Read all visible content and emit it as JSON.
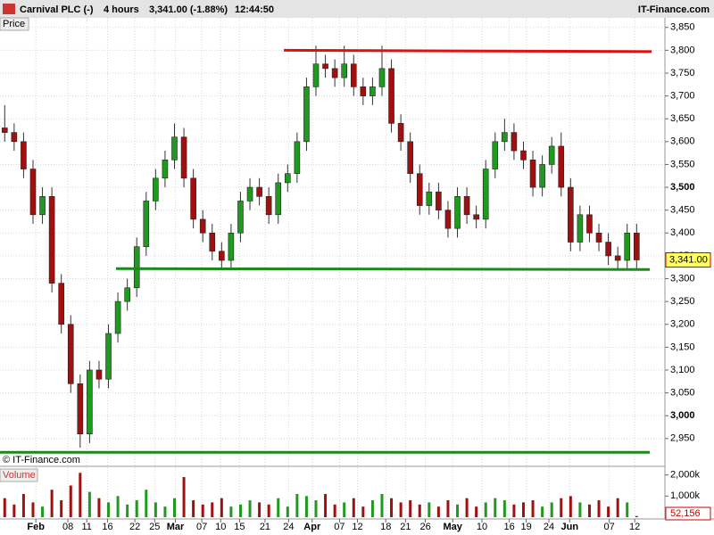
{
  "chart_data": {
    "type": "candlestick",
    "title": "Carnival PLC (-)",
    "interval": "4 hours",
    "quote": "3,341.00 (-1.88%)",
    "time": "12:44:50",
    "brand": "IT-Finance.com",
    "price_label": "Price",
    "copyright": "© IT-Finance.com",
    "volume_label": "Volume",
    "up_color": "#1e9a1e",
    "down_color": "#a01010",
    "grid": true,
    "xlim": [
      -0.5,
      70
    ],
    "ylim": [
      2895,
      3871
    ],
    "yticks": [
      {
        "value": 2950,
        "label": "2,950"
      },
      {
        "value": 3000,
        "label": "3,000"
      },
      {
        "value": 3050,
        "label": "3,050"
      },
      {
        "value": 3100,
        "label": "3,100"
      },
      {
        "value": 3150,
        "label": "3,150"
      },
      {
        "value": 3200,
        "label": "3,200"
      },
      {
        "value": 3250,
        "label": "3,250"
      },
      {
        "value": 3300,
        "label": "3,300"
      },
      {
        "value": 3350,
        "label": "3,350"
      },
      {
        "value": 3400,
        "label": "3,400"
      },
      {
        "value": 3450,
        "label": "3,450"
      },
      {
        "value": 3500,
        "label": "3,500"
      },
      {
        "value": 3550,
        "label": "3,550"
      },
      {
        "value": 3600,
        "label": "3,600"
      },
      {
        "value": 3650,
        "label": "3,650"
      },
      {
        "value": 3700,
        "label": "3,700"
      },
      {
        "value": 3750,
        "label": "3,750"
      },
      {
        "value": 3800,
        "label": "3,800"
      },
      {
        "value": 3850,
        "label": "3,850"
      }
    ],
    "xticks": [
      {
        "value": 3.3,
        "label": "Feb"
      },
      {
        "value": 6.7,
        "label": "08"
      },
      {
        "value": 8.7,
        "label": "11"
      },
      {
        "value": 10.9,
        "label": "16"
      },
      {
        "value": 13.8,
        "label": "22"
      },
      {
        "value": 15.9,
        "label": "25"
      },
      {
        "value": 18.1,
        "label": "Mar"
      },
      {
        "value": 20.9,
        "label": "07"
      },
      {
        "value": 22.9,
        "label": "10"
      },
      {
        "value": 24.9,
        "label": "15"
      },
      {
        "value": 27.6,
        "label": "21"
      },
      {
        "value": 30.1,
        "label": "24"
      },
      {
        "value": 32.6,
        "label": "Apr"
      },
      {
        "value": 35.5,
        "label": "07"
      },
      {
        "value": 37.4,
        "label": "12"
      },
      {
        "value": 40.4,
        "label": "18"
      },
      {
        "value": 42.5,
        "label": "21"
      },
      {
        "value": 44.6,
        "label": "26"
      },
      {
        "value": 47.5,
        "label": "May"
      },
      {
        "value": 50.6,
        "label": "10"
      },
      {
        "value": 53.5,
        "label": "16"
      },
      {
        "value": 55.3,
        "label": "19"
      },
      {
        "value": 57.7,
        "label": "24"
      },
      {
        "value": 59.9,
        "label": "Jun"
      },
      {
        "value": 64.1,
        "label": "07"
      },
      {
        "value": 66.8,
        "label": "12"
      }
    ],
    "open": [
      3630,
      3620,
      3600,
      3540,
      3440,
      3480,
      3290,
      3200,
      3070,
      2960,
      3100,
      3080,
      3180,
      3250,
      3280,
      3370,
      3470,
      3520,
      3560,
      3610,
      3520,
      3430,
      3400,
      3360,
      3340,
      3400,
      3470,
      3500,
      3480,
      3440,
      3510,
      3530,
      3600,
      3720,
      3770,
      3760,
      3740,
      3770,
      3720,
      3700,
      3720,
      3760,
      3640,
      3600,
      3530,
      3460,
      3490,
      3450,
      3410,
      3480,
      3440,
      3430,
      3540,
      3600,
      3620,
      3580,
      3560,
      3500,
      3550,
      3590,
      3500,
      3380,
      3440,
      3400,
      3380,
      3350,
      3340,
      3400
    ],
    "high": [
      3680,
      3640,
      3620,
      3560,
      3500,
      3500,
      3310,
      3220,
      3090,
      3120,
      3120,
      3200,
      3270,
      3300,
      3390,
      3490,
      3540,
      3580,
      3640,
      3630,
      3540,
      3450,
      3420,
      3380,
      3420,
      3490,
      3520,
      3520,
      3500,
      3530,
      3550,
      3620,
      3740,
      3810,
      3790,
      3780,
      3810,
      3790,
      3740,
      3740,
      3810,
      3780,
      3660,
      3620,
      3550,
      3510,
      3510,
      3470,
      3500,
      3500,
      3460,
      3560,
      3620,
      3650,
      3640,
      3600,
      3580,
      3570,
      3610,
      3620,
      3520,
      3460,
      3460,
      3420,
      3400,
      3370,
      3420,
      3420
    ],
    "low": [
      3600,
      3580,
      3520,
      3420,
      3420,
      3270,
      3180,
      3050,
      2930,
      2940,
      3060,
      3060,
      3160,
      3230,
      3260,
      3350,
      3450,
      3500,
      3540,
      3500,
      3410,
      3380,
      3340,
      3320,
      3320,
      3380,
      3450,
      3460,
      3420,
      3420,
      3490,
      3510,
      3580,
      3700,
      3740,
      3720,
      3720,
      3700,
      3680,
      3680,
      3700,
      3620,
      3580,
      3510,
      3440,
      3440,
      3430,
      3390,
      3390,
      3420,
      3410,
      3410,
      3520,
      3580,
      3560,
      3540,
      3480,
      3480,
      3530,
      3480,
      3360,
      3360,
      3380,
      3360,
      3330,
      3320,
      3320,
      3321
    ],
    "close": [
      3620,
      3600,
      3540,
      3440,
      3480,
      3290,
      3200,
      3070,
      2960,
      3100,
      3080,
      3180,
      3250,
      3280,
      3370,
      3470,
      3520,
      3560,
      3610,
      3520,
      3430,
      3400,
      3360,
      3340,
      3400,
      3470,
      3500,
      3480,
      3440,
      3510,
      3530,
      3600,
      3720,
      3770,
      3760,
      3740,
      3770,
      3720,
      3700,
      3720,
      3760,
      3640,
      3600,
      3530,
      3460,
      3490,
      3450,
      3410,
      3480,
      3440,
      3430,
      3540,
      3600,
      3620,
      3580,
      3560,
      3500,
      3550,
      3590,
      3500,
      3380,
      3440,
      3400,
      3380,
      3350,
      3340,
      3400,
      3341
    ],
    "last_price": {
      "value": 3341,
      "label": "3,341.00"
    },
    "trendlines": [
      {
        "color": "#e01010",
        "x": [
          29.6,
          68.6
        ],
        "y": [
          3800,
          3797
        ]
      },
      {
        "color": "#1a8a1a",
        "x": [
          11.8,
          68.4
        ],
        "y": [
          3322,
          3320
        ]
      },
      {
        "color": "#1a8a1a",
        "x": [
          -0.5,
          68.4
        ],
        "y": [
          2920,
          2920
        ]
      }
    ],
    "volume": {
      "ylim": [
        0,
        2240000
      ],
      "yticks": [
        {
          "value": 1000000,
          "label": "1,000k"
        },
        {
          "value": 2000000,
          "label": "2,000k"
        }
      ],
      "values": [
        900000,
        600000,
        1100000,
        700000,
        500000,
        1300000,
        800000,
        1500000,
        2100000,
        1200000,
        900000,
        700000,
        1000000,
        600000,
        800000,
        1300000,
        700000,
        500000,
        900000,
        1900000,
        800000,
        600000,
        700000,
        900000,
        500000,
        600000,
        800000,
        700000,
        600000,
        900000,
        500000,
        1100000,
        1000000,
        800000,
        1100000,
        600000,
        700000,
        900000,
        500000,
        800000,
        1100000,
        900000,
        700000,
        800000,
        600000,
        700000,
        500000,
        800000,
        600000,
        900000,
        500000,
        700000,
        900000,
        800000,
        600000,
        700000,
        800000,
        500000,
        700000,
        900000,
        1000000,
        700000,
        600000,
        800000,
        500000,
        900000,
        700000,
        52156
      ],
      "last_label": "52,156"
    }
  }
}
